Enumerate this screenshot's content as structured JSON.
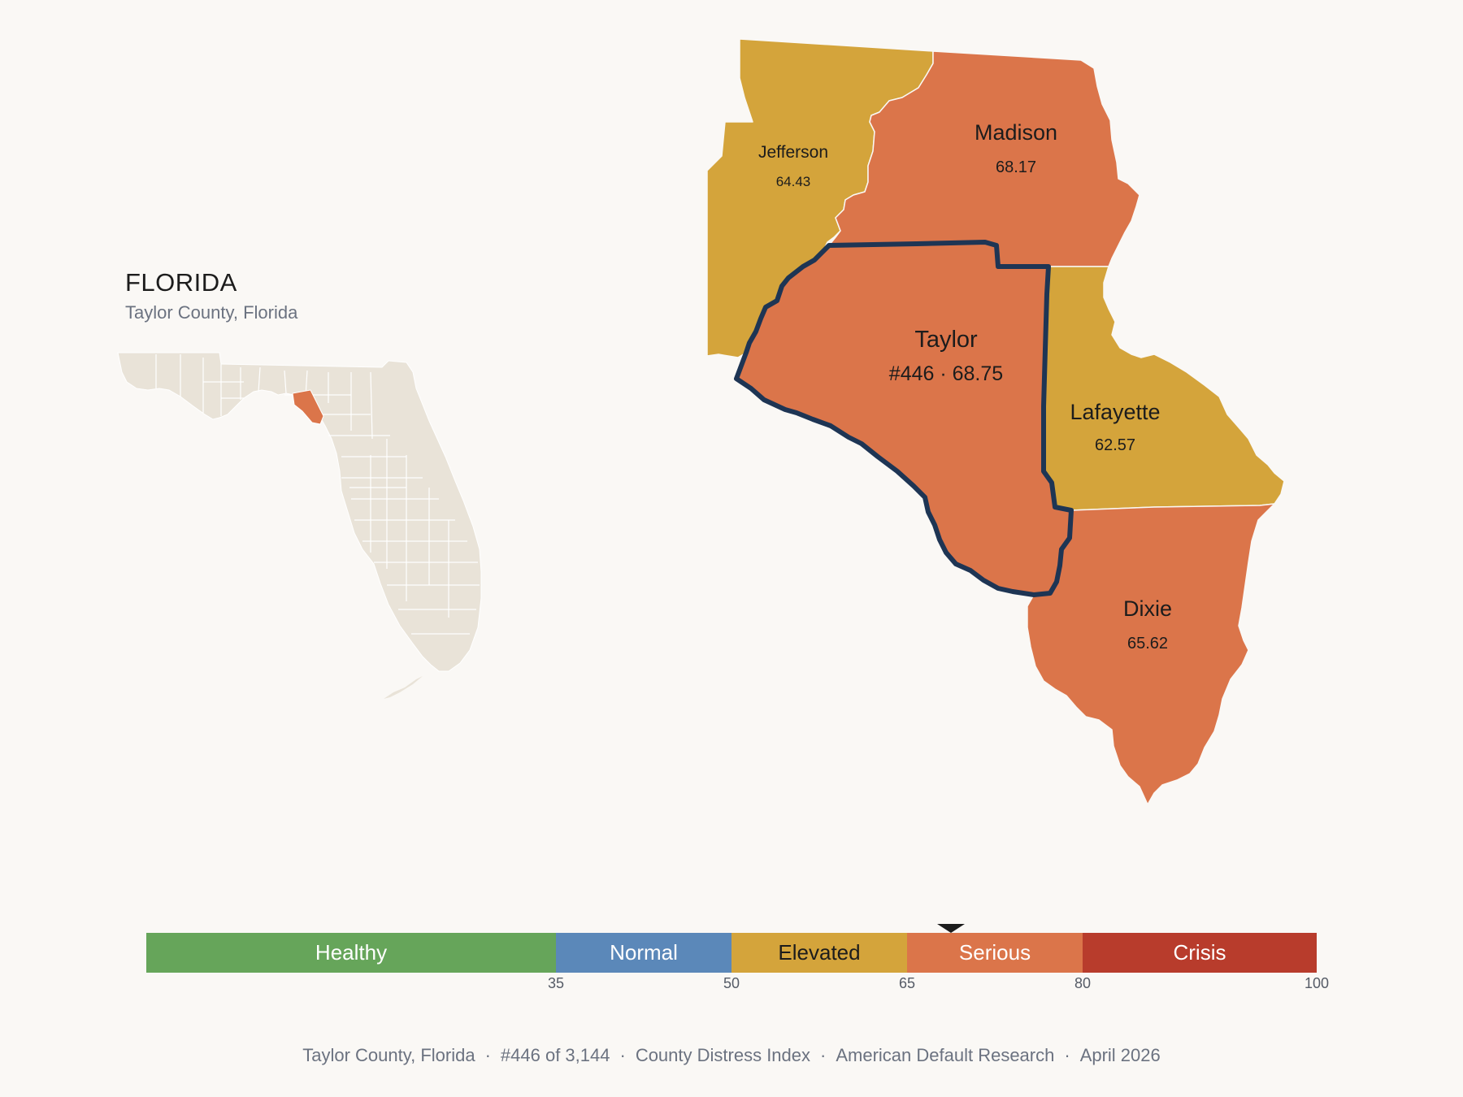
{
  "state": {
    "name": "FLORIDA",
    "subtitle": "Taylor County, Florida"
  },
  "colors": {
    "background": "#faf8f5",
    "inset_land": "#e9e3d8",
    "highlight": "#db754a",
    "elevated": "#d4a43b",
    "serious": "#db754a",
    "outline": "#1e3554"
  },
  "counties": [
    {
      "id": "jefferson",
      "name": "Jefferson",
      "value": "64.43",
      "category": "Elevated"
    },
    {
      "id": "madison",
      "name": "Madison",
      "value": "68.17",
      "category": "Serious"
    },
    {
      "id": "taylor",
      "name": "Taylor",
      "value": "#446 · 68.75",
      "category": "Serious",
      "selected": true
    },
    {
      "id": "lafayette",
      "name": "Lafayette",
      "value": "62.57",
      "category": "Elevated"
    },
    {
      "id": "dixie",
      "name": "Dixie",
      "value": "65.62",
      "category": "Serious"
    }
  ],
  "scale": {
    "min": 0,
    "max": 100,
    "marker_value": 68.75,
    "segments": [
      {
        "label": "Healthy",
        "from": 0,
        "to": 35,
        "color": "#66a55a",
        "text_color": "#ffffff"
      },
      {
        "label": "Normal",
        "from": 35,
        "to": 50,
        "color": "#5b88b9",
        "text_color": "#ffffff"
      },
      {
        "label": "Elevated",
        "from": 50,
        "to": 65,
        "color": "#d4a43b",
        "text_color": "#1c1c1c"
      },
      {
        "label": "Serious",
        "from": 65,
        "to": 80,
        "color": "#db754a",
        "text_color": "#ffffff"
      },
      {
        "label": "Crisis",
        "from": 80,
        "to": 100,
        "color": "#b83c2c",
        "text_color": "#ffffff"
      }
    ],
    "ticks": [
      "35",
      "50",
      "65",
      "80",
      "100"
    ]
  },
  "footer": {
    "items": [
      "Taylor County, Florida",
      "#446 of 3,144",
      "County Distress Index",
      "American Default Research",
      "April 2026"
    ],
    "separator": "·"
  }
}
